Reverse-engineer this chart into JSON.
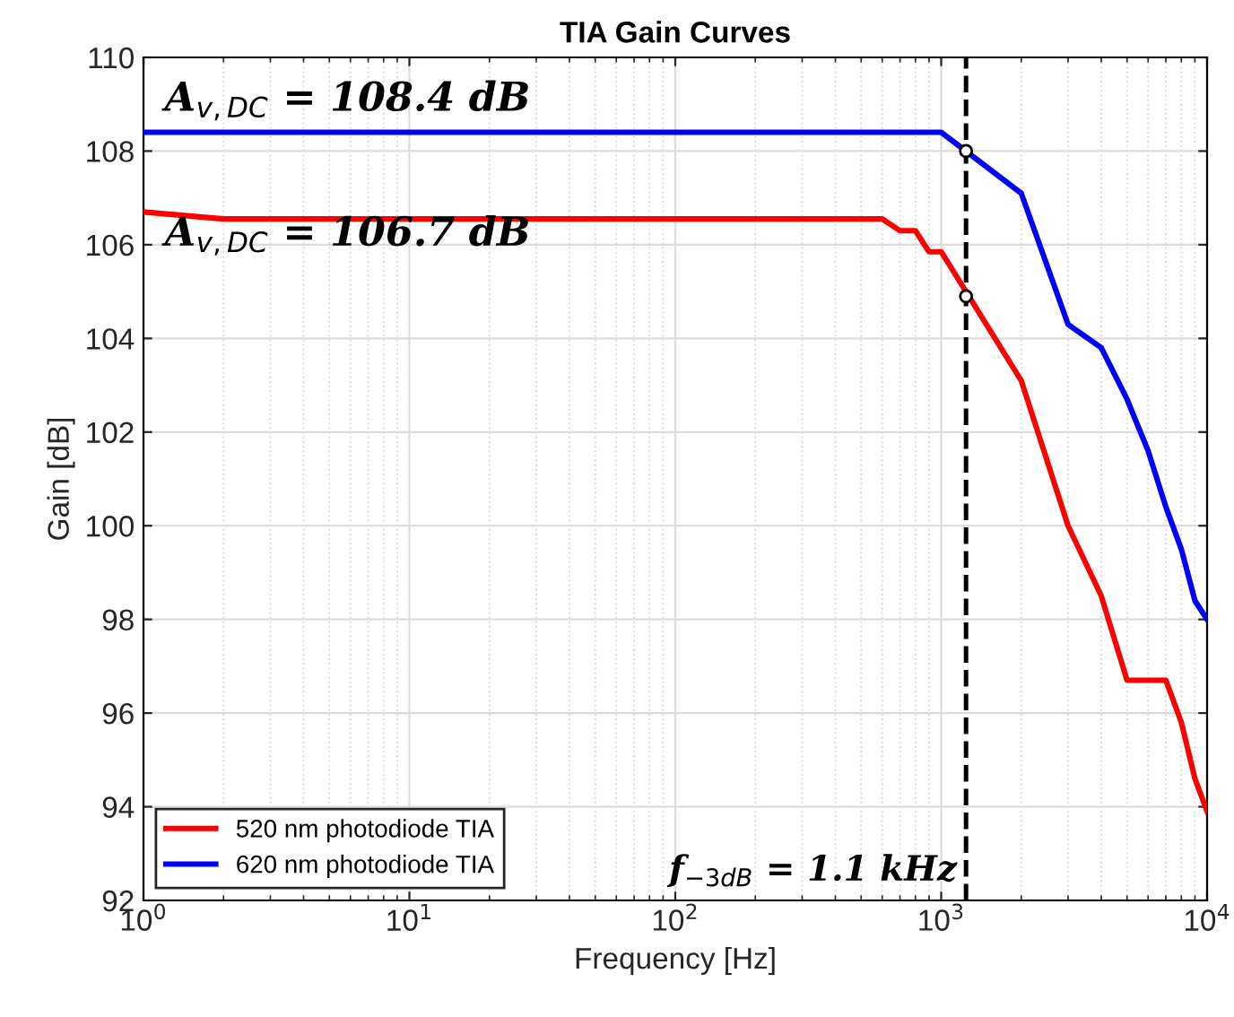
{
  "chart_data": {
    "type": "line",
    "title": "TIA Gain Curves",
    "xlabel": "Frequency [Hz]",
    "ylabel": "Gain [dB]",
    "log": "x",
    "xlim": [
      1,
      10000
    ],
    "ylim": [
      92,
      110
    ],
    "xticks": [
      {
        "value": 1,
        "label": "10$^{0}$"
      },
      {
        "value": 10,
        "label": "10$^{1}$"
      },
      {
        "value": 100,
        "label": "10$^{2}$"
      },
      {
        "value": 1000,
        "label": "10$^{3}$"
      },
      {
        "value": 10000,
        "label": "10$^{4}$"
      }
    ],
    "yticks": [
      92,
      94,
      96,
      98,
      100,
      102,
      104,
      106,
      108,
      110
    ],
    "grid": true,
    "legend": "bottom left",
    "series": [
      {
        "name": "520 nm photodiode TIA",
        "color": "#ff0000",
        "x": [
          1,
          2,
          600,
          700,
          800,
          900,
          1000,
          2000,
          3000,
          4000,
          5000,
          7000,
          8000,
          9000,
          10000
        ],
        "values": [
          106.7,
          106.55,
          106.55,
          106.3,
          106.3,
          105.85,
          105.85,
          103.1,
          100.0,
          98.5,
          96.7,
          96.7,
          95.8,
          94.6,
          93.9
        ]
      },
      {
        "name": "620 nm photodiode TIA",
        "color": "#0000ff",
        "x": [
          1,
          1000,
          2000,
          3000,
          4000,
          5000,
          6000,
          7000,
          8000,
          9000,
          10000
        ],
        "values": [
          108.4,
          108.4,
          107.1,
          104.3,
          103.8,
          102.7,
          101.6,
          100.4,
          99.5,
          98.4,
          98.0
        ]
      },
      {
        "type": "scatter",
        "color": "#000000",
        "marker": "circle",
        "x": [
          1240,
          1240
        ],
        "values": [
          108.0,
          104.9
        ]
      }
    ],
    "ref_lines": [
      {
        "axis": "x",
        "value": 1240,
        "color": "#000000",
        "line_style": "dashed"
      }
    ],
    "annotations": [
      "A$_{v,DC}$ = 108.4 dB",
      "A$_{v,DC}$ = 106.7 dB",
      "f$_{−3dB}$ = 1.1 kHz"
    ]
  }
}
